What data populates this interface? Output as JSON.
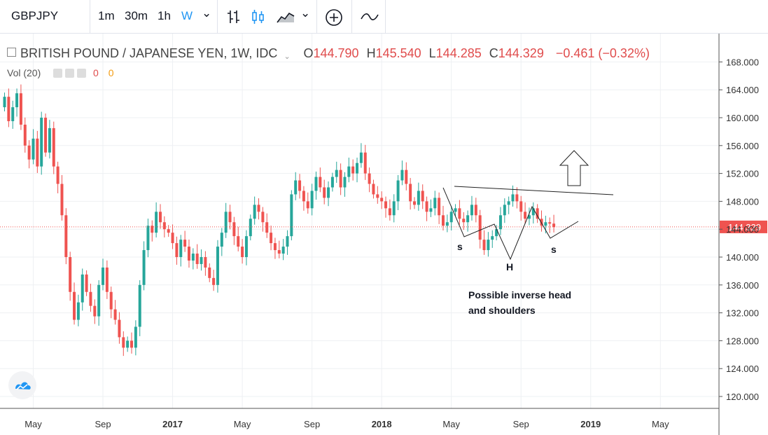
{
  "toolbar": {
    "symbol": "GBPJPY",
    "res_1m": "1m",
    "res_30m": "30m",
    "res_1h": "1h",
    "res_w": "W",
    "chevron": "⌄"
  },
  "legend": {
    "title": "BRITISH POUND / JAPANESE YEN, 1W, IDC",
    "o_label": "O",
    "o_value": "144.790",
    "h_label": "H",
    "h_value": "145.540",
    "l_label": "L",
    "l_value": "144.285",
    "c_label": "C",
    "c_value": "144.329",
    "change": "−0.461 (−0.32%)"
  },
  "volume": {
    "label": "Vol (20)",
    "value_1": "0",
    "value_2": "0"
  },
  "annotations": {
    "s_left": "s",
    "head": "H",
    "s_right": "s",
    "note_line1": "Possible inverse head",
    "note_line2": "and shoulders"
  },
  "colors": {
    "up": "#26a69a",
    "down": "#ef5350",
    "last_price_bg": "#ef5350",
    "accent": "#2196f3"
  },
  "chart_data": {
    "type": "candlestick",
    "title": "BRITISH POUND / JAPANESE YEN, 1W, IDC",
    "last_price": "144.329",
    "ylim": [
      118.0,
      171.0
    ],
    "y_ticks": [
      120,
      124,
      128,
      132,
      136,
      140,
      144,
      148,
      152,
      156,
      160,
      164,
      168
    ],
    "x_ticks": [
      {
        "label": "May",
        "week": 7
      },
      {
        "label": "Sep",
        "week": 24
      },
      {
        "label": "2017",
        "week": 41
      },
      {
        "label": "May",
        "week": 58
      },
      {
        "label": "Sep",
        "week": 75
      },
      {
        "label": "2018",
        "week": 92
      },
      {
        "label": "May",
        "week": 109
      },
      {
        "label": "Sep",
        "week": 126
      },
      {
        "label": "2019",
        "week": 143
      },
      {
        "label": "May",
        "week": 160
      }
    ],
    "closes": [
      163.0,
      159.5,
      161.5,
      163.5,
      159.0,
      156.0,
      154.0,
      157.0,
      153.0,
      160.0,
      155.0,
      158.5,
      153.0,
      150.5,
      146.0,
      140.0,
      135.0,
      131.0,
      133.5,
      137.5,
      135.0,
      133.0,
      131.5,
      136.0,
      138.5,
      135.0,
      132.5,
      131.0,
      128.5,
      127.0,
      128.0,
      127.0,
      130.0,
      136.0,
      141.0,
      144.5,
      143.5,
      146.5,
      145.0,
      144.0,
      143.5,
      142.0,
      140.0,
      142.5,
      141.5,
      139.5,
      140.5,
      139.0,
      140.0,
      138.5,
      137.0,
      136.0,
      141.5,
      143.5,
      146.5,
      145.0,
      143.0,
      141.5,
      140.0,
      143.0,
      145.5,
      147.5,
      146.5,
      145.0,
      143.5,
      142.0,
      141.0,
      140.5,
      141.5,
      143.0,
      149.0,
      151.0,
      149.5,
      148.0,
      147.0,
      149.5,
      151.5,
      150.0,
      148.5,
      150.0,
      151.5,
      152.5,
      150.0,
      151.5,
      153.0,
      152.0,
      153.5,
      155.0,
      152.0,
      150.5,
      149.0,
      148.5,
      148.0,
      147.0,
      146.0,
      148.0,
      151.0,
      152.5,
      150.5,
      148.0,
      147.5,
      149.5,
      148.0,
      146.5,
      147.0,
      148.5,
      146.0,
      144.5,
      145.0,
      146.5,
      147.0,
      145.5,
      145.0,
      146.0,
      147.5,
      146.0,
      142.5,
      141.0,
      142.5,
      143.0,
      144.0,
      146.0,
      147.5,
      148.0,
      149.0,
      148.0,
      146.5,
      145.5,
      146.0,
      147.0,
      145.5,
      144.5,
      145.0,
      144.8,
      144.3
    ],
    "first_open": 161.5,
    "pattern": {
      "name": "Possible inverse head and shoulders",
      "points": [
        "s",
        "H",
        "s"
      ],
      "target": "up"
    }
  }
}
